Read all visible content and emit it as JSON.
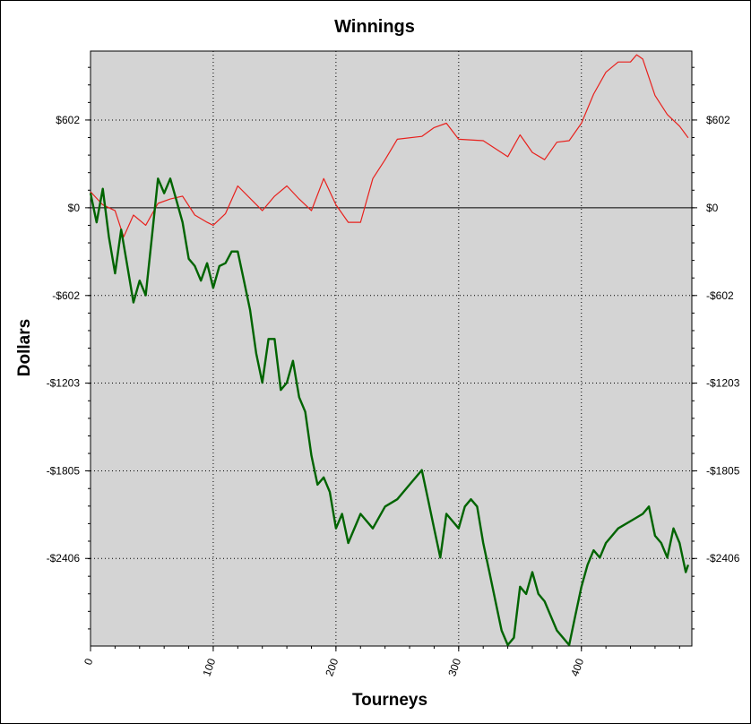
{
  "chart_data": {
    "type": "line",
    "title": "Winnings",
    "xlabel": "Tourneys",
    "ylabel": "Dollars",
    "xlim": [
      0,
      490
    ],
    "ylim": [
      -3007,
      1075
    ],
    "x_ticks": [
      0,
      100,
      200,
      300,
      400
    ],
    "x_tick_labels": [
      "0",
      "100",
      "200",
      "300",
      "400"
    ],
    "y_ticks": [
      602,
      0,
      -602,
      -1203,
      -1805,
      -2406
    ],
    "y_tick_labels": [
      "$602",
      "$0",
      "-$602",
      "-$1203",
      "-$1805",
      "-$2406"
    ],
    "grid": true,
    "background": "#d4d4d4",
    "series": [
      {
        "color": "#e8201c",
        "x": [
          0,
          10,
          20,
          27,
          35,
          45,
          55,
          65,
          75,
          85,
          95,
          100,
          110,
          120,
          140,
          150,
          160,
          170,
          180,
          190,
          200,
          210,
          220,
          230,
          240,
          250,
          270,
          280,
          290,
          300,
          320,
          340,
          350,
          360,
          370,
          380,
          390,
          400,
          410,
          420,
          430,
          440,
          445,
          450,
          460,
          470,
          480,
          487
        ],
        "values": [
          110,
          20,
          -20,
          -200,
          -50,
          -120,
          30,
          60,
          80,
          -50,
          -100,
          -120,
          -40,
          150,
          -20,
          80,
          150,
          60,
          -20,
          200,
          20,
          -100,
          -100,
          200,
          330,
          470,
          490,
          550,
          580,
          470,
          460,
          350,
          500,
          380,
          330,
          450,
          460,
          580,
          780,
          930,
          1000,
          1000,
          1050,
          1020,
          770,
          640,
          560,
          480
        ]
      },
      {
        "color": "#006400",
        "x": [
          0,
          5,
          10,
          15,
          20,
          25,
          30,
          35,
          40,
          45,
          50,
          55,
          60,
          65,
          70,
          75,
          80,
          85,
          90,
          95,
          100,
          105,
          110,
          115,
          120,
          125,
          130,
          135,
          140,
          145,
          150,
          155,
          160,
          165,
          170,
          175,
          180,
          185,
          190,
          195,
          200,
          205,
          210,
          220,
          230,
          240,
          250,
          260,
          270,
          275,
          280,
          285,
          290,
          295,
          300,
          305,
          310,
          315,
          320,
          325,
          330,
          335,
          340,
          345,
          350,
          355,
          360,
          365,
          370,
          375,
          380,
          385,
          390,
          395,
          400,
          405,
          410,
          415,
          420,
          430,
          440,
          450,
          455,
          460,
          465,
          470,
          475,
          480,
          485,
          487
        ],
        "values": [
          100,
          -100,
          130,
          -200,
          -450,
          -150,
          -400,
          -650,
          -500,
          -600,
          -200,
          200,
          100,
          200,
          50,
          -100,
          -350,
          -400,
          -500,
          -380,
          -550,
          -400,
          -380,
          -300,
          -300,
          -500,
          -700,
          -1000,
          -1200,
          -900,
          -900,
          -1250,
          -1200,
          -1050,
          -1300,
          -1400,
          -1700,
          -1900,
          -1850,
          -1950,
          -2200,
          -2100,
          -2300,
          -2100,
          -2200,
          -2050,
          -2000,
          -1900,
          -1800,
          -2000,
          -2200,
          -2400,
          -2100,
          -2150,
          -2200,
          -2050,
          -2000,
          -2050,
          -2300,
          -2500,
          -2700,
          -2900,
          -3000,
          -2950,
          -2600,
          -2650,
          -2500,
          -2650,
          -2700,
          -2800,
          -2900,
          -2950,
          -3000,
          -2800,
          -2600,
          -2450,
          -2350,
          -2400,
          -2300,
          -2200,
          -2150,
          -2100,
          -2050,
          -2250,
          -2300,
          -2400,
          -2200,
          -2300,
          -2500,
          -2450
        ]
      }
    ]
  }
}
